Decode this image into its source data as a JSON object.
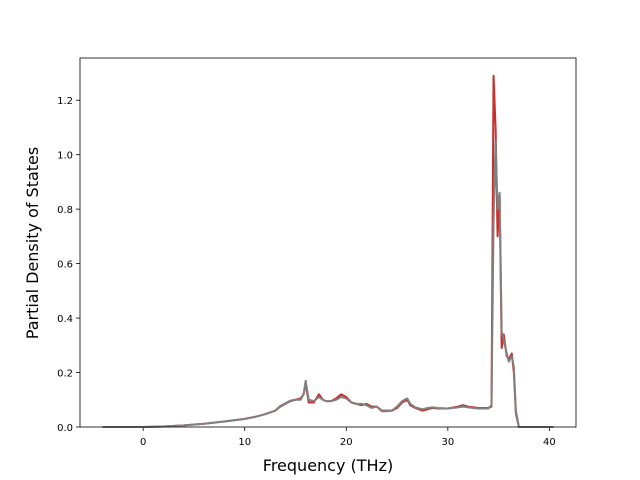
{
  "chart_data": {
    "type": "line",
    "x_label": "Frequency (THz)",
    "y_label": "Partial Density of States",
    "x": [
      -4,
      0,
      2,
      4,
      6,
      8,
      10,
      11,
      12,
      13,
      13.5,
      14,
      14.5,
      15,
      15.5,
      15.8,
      16,
      16.3,
      16.8,
      17.3,
      17.7,
      18,
      18.5,
      19,
      19.5,
      20,
      20.5,
      21,
      21.5,
      22,
      22.5,
      23,
      23.5,
      24,
      24.5,
      25,
      25.5,
      26,
      26.3,
      26.8,
      27.5,
      28,
      28.5,
      29,
      30,
      31,
      31.5,
      32,
      33,
      34,
      34.3,
      34.5,
      34.7,
      34.9,
      35.1,
      35.3,
      35.5,
      35.8,
      36,
      36.3,
      36.5,
      36.7,
      37,
      38,
      40.4
    ],
    "series": [
      {
        "color": "#c9302c",
        "values": [
          0,
          0,
          0.002,
          0.006,
          0.012,
          0.02,
          0.03,
          0.037,
          0.047,
          0.06,
          0.075,
          0.085,
          0.095,
          0.1,
          0.105,
          0.12,
          0.16,
          0.09,
          0.09,
          0.12,
          0.1,
          0.095,
          0.095,
          0.105,
          0.12,
          0.11,
          0.09,
          0.085,
          0.08,
          0.085,
          0.075,
          0.075,
          0.06,
          0.06,
          0.06,
          0.07,
          0.09,
          0.1,
          0.08,
          0.07,
          0.06,
          0.065,
          0.07,
          0.068,
          0.068,
          0.075,
          0.08,
          0.075,
          0.07,
          0.07,
          0.075,
          1.29,
          1.1,
          0.7,
          0.85,
          0.29,
          0.34,
          0.26,
          0.25,
          0.27,
          0.2,
          0.05,
          0,
          0,
          0
        ]
      },
      {
        "color": "#808080",
        "values": [
          0,
          0,
          0.002,
          0.006,
          0.012,
          0.02,
          0.03,
          0.037,
          0.047,
          0.06,
          0.077,
          0.087,
          0.097,
          0.1,
          0.1,
          0.12,
          0.17,
          0.1,
          0.095,
          0.11,
          0.1,
          0.095,
          0.095,
          0.1,
          0.11,
          0.105,
          0.09,
          0.085,
          0.085,
          0.08,
          0.07,
          0.075,
          0.058,
          0.058,
          0.06,
          0.075,
          0.095,
          0.105,
          0.085,
          0.072,
          0.065,
          0.07,
          0.072,
          0.07,
          0.068,
          0.072,
          0.075,
          0.072,
          0.068,
          0.068,
          0.08,
          0.75,
          1.05,
          0.8,
          0.86,
          0.35,
          0.32,
          0.27,
          0.24,
          0.26,
          0.22,
          0.06,
          0,
          0,
          0
        ]
      }
    ],
    "xlim": [
      -6.22,
      42.62
    ],
    "ylim": [
      0,
      1.355
    ],
    "xticks": [
      0,
      10,
      20,
      30,
      40
    ],
    "yticks": [
      {
        "value": 0,
        "label": "0.0"
      },
      0.2,
      0.4,
      0.6,
      0.8,
      {
        "value": 1,
        "label": "1.0"
      },
      1.2
    ]
  }
}
